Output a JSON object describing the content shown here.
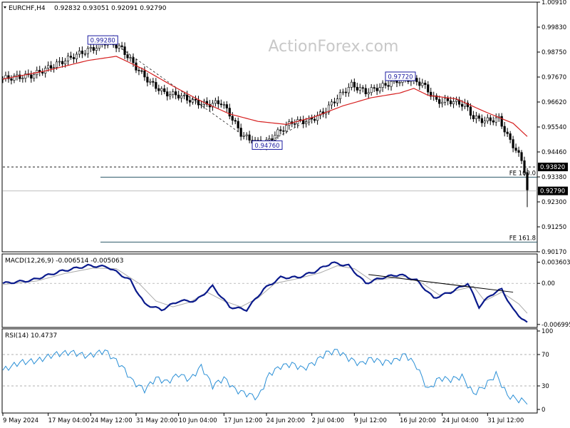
{
  "header": {
    "symbol": "EURCHF,H4",
    "ohlc": "0.92832 0.93051 0.92091 0.92790"
  },
  "watermark": "ActionForex.com",
  "colors": {
    "candles": "#000000",
    "ma": "#d62020",
    "macd": "#0a1a8c",
    "signal": "#a9a9a9",
    "rsi": "#2a8fd6",
    "level_line": "#2e5a6a"
  },
  "chart_data": [
    {
      "type": "candlestick",
      "title": "EURCHF,H4",
      "ylim": [
        0.9017,
        1.0091
      ],
      "y_ticks": [
        "1.00910",
        "0.99830",
        "0.98750",
        "0.97670",
        "0.96620",
        "0.95540",
        "0.94460",
        "0.93380",
        "0.92300",
        "0.91250",
        "0.90170"
      ],
      "x_ticks": [
        "9 May 2024",
        "17 May 04:00",
        "24 May 12:00",
        "31 May 20:00",
        "10 Jun 04:00",
        "17 Jun 12:00",
        "24 Jun 20:00",
        "2 Jul 04:00",
        "9 Jul 12:00",
        "16 Jul 20:00",
        "24 Jul 04:00",
        "31 Jul 12:00"
      ],
      "close_path": [
        [
          0,
          0.9762
        ],
        [
          10,
          0.9775
        ],
        [
          20,
          0.983
        ],
        [
          27,
          0.987
        ],
        [
          33,
          0.9898
        ],
        [
          37,
          0.9925
        ],
        [
          42,
          0.989
        ],
        [
          47,
          0.981
        ],
        [
          52,
          0.9745
        ],
        [
          57,
          0.97
        ],
        [
          62,
          0.969
        ],
        [
          67,
          0.9665
        ],
        [
          72,
          0.965
        ],
        [
          77,
          0.966
        ],
        [
          80,
          0.961
        ],
        [
          84,
          0.9525
        ],
        [
          87,
          0.95
        ],
        [
          92,
          0.9478
        ],
        [
          97,
          0.953
        ],
        [
          102,
          0.9575
        ],
        [
          108,
          0.958
        ],
        [
          113,
          0.9615
        ],
        [
          118,
          0.968
        ],
        [
          123,
          0.9735
        ],
        [
          128,
          0.9705
        ],
        [
          133,
          0.9725
        ],
        [
          138,
          0.975
        ],
        [
          143,
          0.976
        ],
        [
          148,
          0.974
        ],
        [
          153,
          0.9665
        ],
        [
          158,
          0.9665
        ],
        [
          163,
          0.965
        ],
        [
          166,
          0.9595
        ],
        [
          170,
          0.958
        ],
        [
          175,
          0.959
        ],
        [
          178,
          0.9515
        ],
        [
          181,
          0.9455
        ],
        [
          183,
          0.941
        ],
        [
          184.5,
          0.935
        ],
        [
          185,
          0.9279
        ]
      ],
      "low_spike": 0.9209,
      "ma": [
        [
          0,
          0.976
        ],
        [
          15,
          0.9795
        ],
        [
          30,
          0.984
        ],
        [
          40,
          0.9858
        ],
        [
          50,
          0.98
        ],
        [
          60,
          0.973
        ],
        [
          70,
          0.9665
        ],
        [
          80,
          0.961
        ],
        [
          90,
          0.9578
        ],
        [
          100,
          0.9565
        ],
        [
          110,
          0.9598
        ],
        [
          120,
          0.9645
        ],
        [
          130,
          0.968
        ],
        [
          140,
          0.97
        ],
        [
          145,
          0.972
        ],
        [
          150,
          0.969
        ],
        [
          160,
          0.9675
        ],
        [
          170,
          0.962
        ],
        [
          180,
          0.957
        ],
        [
          185,
          0.9513
        ]
      ],
      "labels": [
        {
          "text": "0.99280",
          "value": 0.9928,
          "x": 35
        },
        {
          "text": "0.94760",
          "value": 0.9476,
          "x": 93
        },
        {
          "text": "0.97720",
          "value": 0.9772,
          "x": 140
        }
      ],
      "levels": [
        {
          "text": "0.93820",
          "value": 0.9382,
          "style": "dashed"
        },
        {
          "text": "FE 100.0",
          "value": 0.9338,
          "style": "solid"
        },
        {
          "text": "FE 161.8",
          "value": 0.9059,
          "style": "solid"
        }
      ],
      "current_price": "0.92790",
      "current_value": 0.9279
    },
    {
      "type": "line",
      "title": "MACD(12,26,9) -0.006514 -0.005063",
      "ylim": [
        -0.0075,
        0.005
      ],
      "y_ticks": [
        "0.003603",
        "0.00",
        "-0.006995"
      ],
      "y_tick_values": [
        0.003603,
        0.0,
        -0.006995
      ],
      "series": [
        {
          "name": "MACD",
          "values": [
            [
              0,
              0.0
            ],
            [
              10,
              0.0005
            ],
            [
              20,
              0.002
            ],
            [
              30,
              0.003
            ],
            [
              37,
              0.0028
            ],
            [
              45,
              0.0005
            ],
            [
              50,
              -0.0035
            ],
            [
              56,
              -0.0045
            ],
            [
              62,
              -0.003
            ],
            [
              68,
              -0.003
            ],
            [
              74,
              -0.0005
            ],
            [
              80,
              -0.004
            ],
            [
              86,
              -0.0045
            ],
            [
              92,
              -0.001
            ],
            [
              98,
              0.001
            ],
            [
              104,
              0.001
            ],
            [
              110,
              0.002
            ],
            [
              116,
              0.0035
            ],
            [
              122,
              0.003
            ],
            [
              128,
              0.0
            ],
            [
              134,
              0.001
            ],
            [
              140,
              0.0015
            ],
            [
              146,
              0.0005
            ],
            [
              152,
              -0.0025
            ],
            [
              158,
              -0.0015
            ],
            [
              164,
              0.0
            ],
            [
              168,
              -0.004
            ],
            [
              172,
              -0.002
            ],
            [
              176,
              -0.001
            ],
            [
              180,
              -0.0045
            ],
            [
              185,
              -0.0068
            ]
          ]
        },
        {
          "name": "Signal",
          "values": [
            [
              0,
              -0.0002
            ],
            [
              12,
              0.0004
            ],
            [
              22,
              0.0017
            ],
            [
              32,
              0.0026
            ],
            [
              40,
              0.0025
            ],
            [
              48,
              0.0
            ],
            [
              54,
              -0.003
            ],
            [
              60,
              -0.004
            ],
            [
              66,
              -0.0032
            ],
            [
              72,
              -0.0015
            ],
            [
              78,
              -0.003
            ],
            [
              84,
              -0.004
            ],
            [
              90,
              -0.0025
            ],
            [
              96,
              0.0
            ],
            [
              104,
              0.0008
            ],
            [
              112,
              0.0018
            ],
            [
              118,
              0.003
            ],
            [
              124,
              0.0025
            ],
            [
              130,
              0.0005
            ],
            [
              136,
              0.0008
            ],
            [
              142,
              0.0012
            ],
            [
              148,
              0.0
            ],
            [
              154,
              -0.002
            ],
            [
              160,
              -0.0012
            ],
            [
              166,
              -0.0005
            ],
            [
              170,
              -0.003
            ],
            [
              176,
              -0.0015
            ],
            [
              182,
              -0.0035
            ],
            [
              185,
              -0.0051
            ]
          ]
        }
      ],
      "trendline": [
        [
          129,
          0.0015
        ],
        [
          180,
          -0.0015
        ]
      ]
    },
    {
      "type": "line",
      "title": "RSI(14) 10.4737",
      "ylim": [
        0,
        100
      ],
      "y_ticks": [
        "100",
        "70",
        "30",
        "0"
      ],
      "y_tick_values": [
        100,
        70,
        30,
        0
      ],
      "series": [
        {
          "name": "RSI",
          "values": [
            [
              0,
              50
            ],
            [
              6,
              60
            ],
            [
              12,
              62
            ],
            [
              18,
              70
            ],
            [
              24,
              73
            ],
            [
              30,
              68
            ],
            [
              36,
              75
            ],
            [
              42,
              55
            ],
            [
              46,
              35
            ],
            [
              50,
              25
            ],
            [
              54,
              40
            ],
            [
              58,
              35
            ],
            [
              62,
              45
            ],
            [
              66,
              38
            ],
            [
              70,
              55
            ],
            [
              74,
              30
            ],
            [
              78,
              40
            ],
            [
              82,
              25
            ],
            [
              86,
              20
            ],
            [
              90,
              15
            ],
            [
              94,
              45
            ],
            [
              98,
              55
            ],
            [
              102,
              58
            ],
            [
              106,
              52
            ],
            [
              110,
              60
            ],
            [
              114,
              72
            ],
            [
              118,
              75
            ],
            [
              122,
              65
            ],
            [
              126,
              58
            ],
            [
              130,
              65
            ],
            [
              134,
              60
            ],
            [
              138,
              62
            ],
            [
              142,
              70
            ],
            [
              146,
              55
            ],
            [
              150,
              25
            ],
            [
              154,
              40
            ],
            [
              158,
              38
            ],
            [
              162,
              42
            ],
            [
              166,
              20
            ],
            [
              170,
              30
            ],
            [
              174,
              45
            ],
            [
              178,
              18
            ],
            [
              182,
              12
            ],
            [
              185,
              10
            ]
          ]
        }
      ]
    }
  ]
}
